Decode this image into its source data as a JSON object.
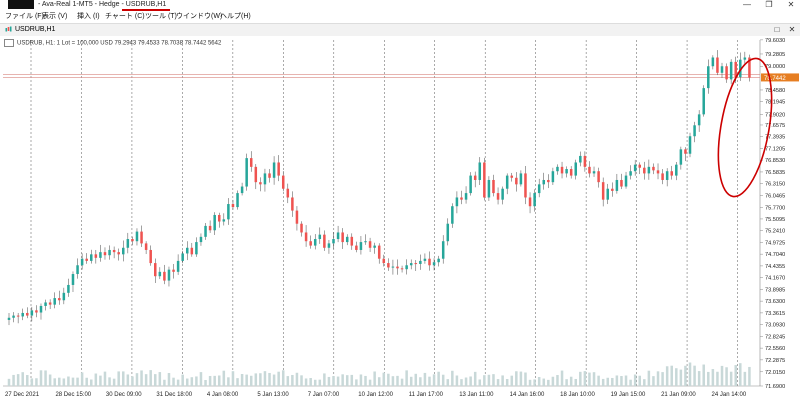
{
  "window": {
    "title": "- Ava-Real 1-MT5 - Hedge - USDRUB,H1",
    "minimize_glyph": "—",
    "maximize_glyph": "❐",
    "close_glyph": "✕"
  },
  "menu": {
    "items": [
      "ファイル (F)",
      "表示 (V)",
      "挿入 (I)",
      "チャート (C)",
      "ツール (T)",
      "ウインドウ(W)",
      "ヘルプ(H)"
    ]
  },
  "tab": {
    "label": "USDRUB,H1",
    "minimize_glyph": "□",
    "close_glyph": "✕"
  },
  "info_bar": {
    "text": "USDRUB, H1: 1 Lot = 100,000 USD  79.2943 79.4533 78.7038 78.7442  5642"
  },
  "annotation": {
    "color": "#cc0000"
  },
  "colors": {
    "bull": "#26a69a",
    "bear": "#ef5350",
    "grid": "#555555",
    "bid_line": "#d98880",
    "price_tag": "#e67e22"
  },
  "chart_data": {
    "type": "candlestick",
    "symbol": "USDRUB",
    "timeframe": "H1",
    "ylim": [
      71.69,
      79.6
    ],
    "y_ticks": [
      "79.6030",
      "79.2805",
      "79.0000",
      "78.7442",
      "78.4580",
      "78.1945",
      "77.9020",
      "77.6575",
      "77.3935",
      "77.1205",
      "76.8530",
      "76.5835",
      "76.3150",
      "76.0465",
      "75.7700",
      "75.5095",
      "75.2410",
      "74.9725",
      "74.7040",
      "74.4355",
      "74.1670",
      "73.8985",
      "73.6300",
      "73.3615",
      "73.0930",
      "72.8245",
      "72.5560",
      "72.2875",
      "72.0150",
      "71.6900"
    ],
    "current_price": "78.7442",
    "x_labels": [
      "27 Dec 2021",
      "28 Dec 15:00",
      "30 Dec 09:00",
      "31 Dec 18:00",
      "4 Jan 08:00",
      "5 Jan 13:00",
      "7 Jan 07:00",
      "10 Jan 12:00",
      "11 Jan 17:00",
      "13 Jan 11:00",
      "14 Jan 16:00",
      "18 Jan 10:00",
      "19 Jan 15:00",
      "21 Jan 09:00",
      "24 Jan 14:00"
    ],
    "closes": [
      73.25,
      73.3,
      73.28,
      73.36,
      73.3,
      73.42,
      73.37,
      73.52,
      73.6,
      73.55,
      73.7,
      73.65,
      73.82,
      74.0,
      74.25,
      74.45,
      74.6,
      74.55,
      74.7,
      74.62,
      74.75,
      74.68,
      74.8,
      74.75,
      74.7,
      74.85,
      75.05,
      75.0,
      75.22,
      74.95,
      74.8,
      74.5,
      74.2,
      74.3,
      74.1,
      74.35,
      74.3,
      74.55,
      74.72,
      74.85,
      74.7,
      74.98,
      75.1,
      75.35,
      75.25,
      75.6,
      75.45,
      75.5,
      75.85,
      75.78,
      76.1,
      76.25,
      76.9,
      76.7,
      76.35,
      76.3,
      76.55,
      76.45,
      76.8,
      76.5,
      76.2,
      76.0,
      75.7,
      75.4,
      75.2,
      75.0,
      74.9,
      75.05,
      75.15,
      74.85,
      74.95,
      75.05,
      75.2,
      74.98,
      75.1,
      74.9,
      74.8,
      74.98,
      75.0,
      74.85,
      74.9,
      74.6,
      74.5,
      74.4,
      74.42,
      74.38,
      74.36,
      74.45,
      74.5,
      74.48,
      74.55,
      74.6,
      74.45,
      74.52,
      74.6,
      75.0,
      75.4,
      75.8,
      76.0,
      75.95,
      76.1,
      76.5,
      76.4,
      76.8,
      76.0,
      76.4,
      76.1,
      75.95,
      76.2,
      76.5,
      76.45,
      76.3,
      76.55,
      76.0,
      75.8,
      76.1,
      76.3,
      76.4,
      76.35,
      76.6,
      76.7,
      76.55,
      76.65,
      76.5,
      76.8,
      76.95,
      76.7,
      76.55,
      76.6,
      76.35,
      75.95,
      76.2,
      76.15,
      76.4,
      76.25,
      76.5,
      76.6,
      76.75,
      76.68,
      76.55,
      76.7,
      76.62,
      76.55,
      76.4,
      76.6,
      76.5,
      76.75,
      77.1,
      77.0,
      77.4,
      77.65,
      77.9,
      78.5,
      79.0,
      79.2,
      78.85,
      79.0,
      78.7,
      79.1,
      78.75,
      79.15,
      79.2,
      78.74
    ]
  }
}
